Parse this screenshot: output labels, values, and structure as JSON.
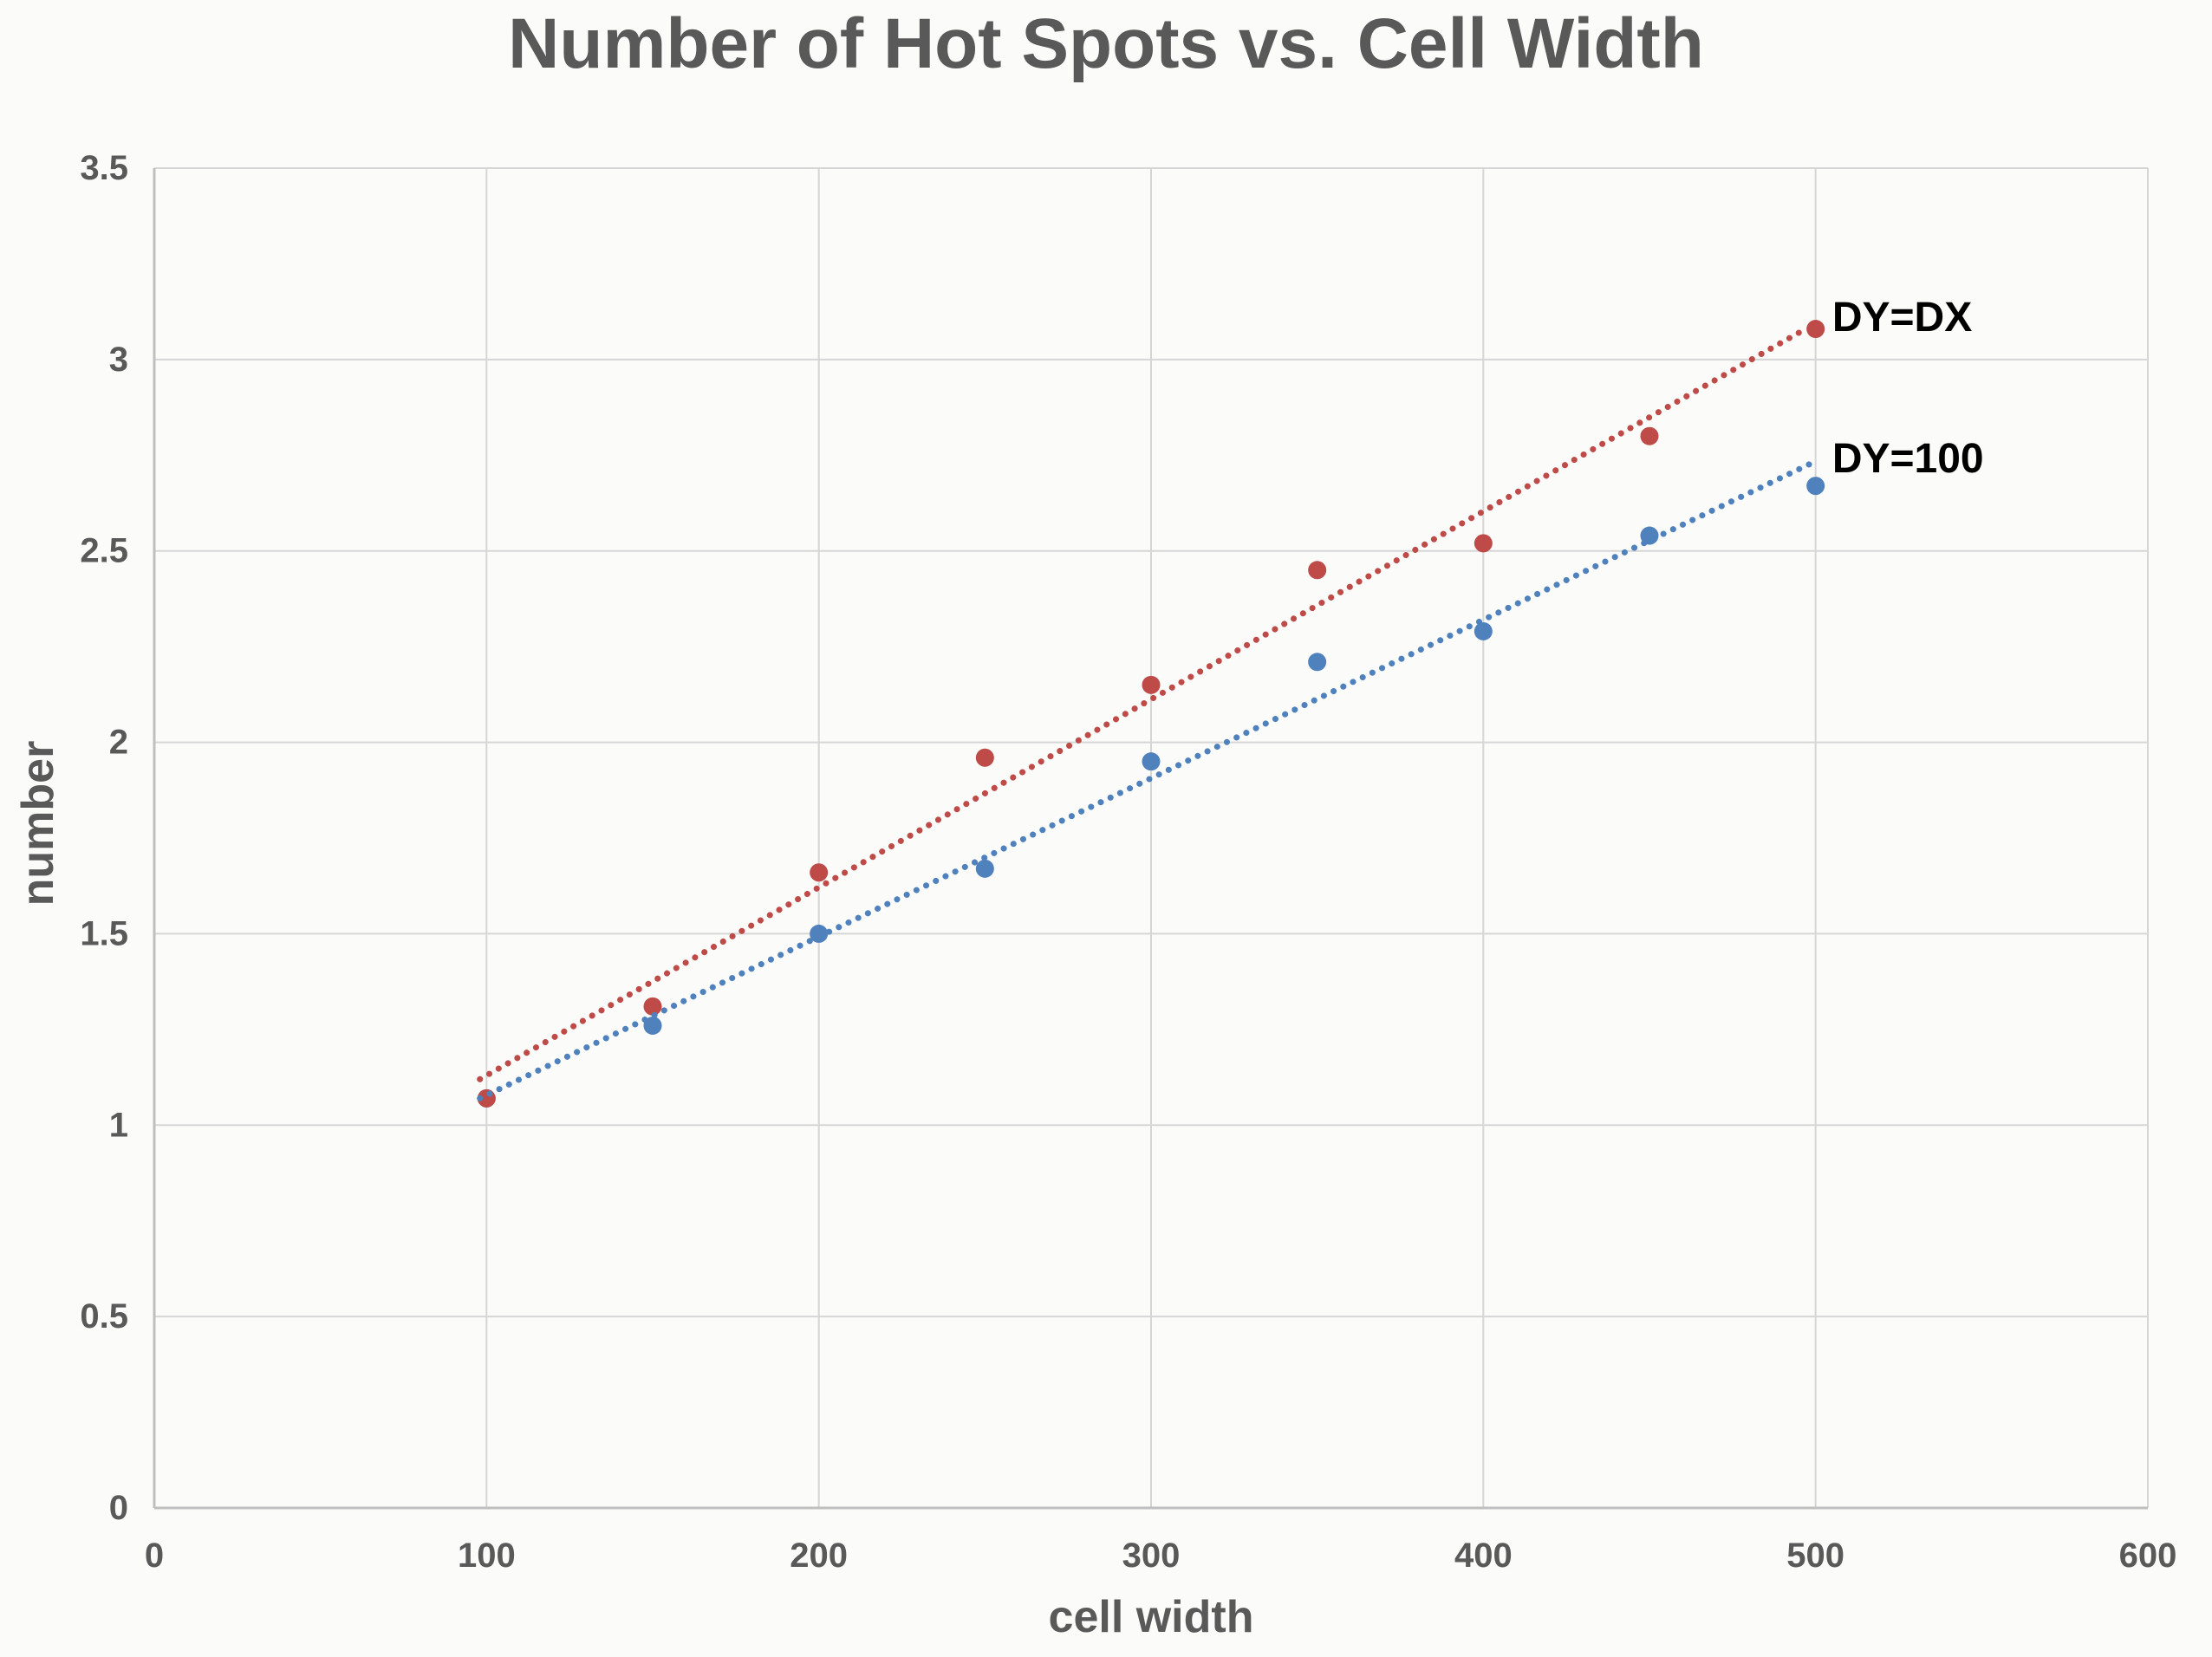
{
  "title": "Number of Hot Spots vs. Cell Width",
  "chart_data": {
    "type": "scatter",
    "title": "Number of Hot Spots vs. Cell Width",
    "xlabel": "cell width",
    "ylabel": "number",
    "xlim": [
      0,
      600
    ],
    "ylim": [
      0,
      3.5
    ],
    "grid": true,
    "x_ticks": {
      "values": [
        0,
        100,
        200,
        300,
        400,
        500,
        600
      ],
      "labels": [
        "0",
        "100",
        "200",
        "300",
        "400",
        "500",
        "600"
      ]
    },
    "y_ticks": {
      "values": [
        0,
        0.5,
        1,
        1.5,
        2,
        2.5,
        3,
        3.5
      ],
      "labels": [
        "0",
        "0.5",
        "1",
        "1.5",
        "2",
        "2.5",
        "3",
        "3.5"
      ]
    },
    "x": [
      100,
      150,
      200,
      250,
      300,
      350,
      400,
      450,
      500
    ],
    "series": [
      {
        "name": "DY=100",
        "color": "#4F81BD",
        "values": [
          1.07,
          1.26,
          1.5,
          1.67,
          1.95,
          2.21,
          2.29,
          2.54,
          2.67
        ],
        "trendline": {
          "style": "dotted",
          "x_start": 98,
          "y_start": 1.07,
          "x_end": 499,
          "y_end": 2.73
        },
        "label": {
          "text": "DY=100",
          "x": 505,
          "y": 2.74
        }
      },
      {
        "name": "DY=DX",
        "color": "#BE4B48",
        "values": [
          1.07,
          1.31,
          1.66,
          1.96,
          2.15,
          2.45,
          2.52,
          2.8,
          3.08
        ],
        "trendline": {
          "style": "dotted",
          "x_start": 98,
          "y_start": 1.12,
          "x_end": 497,
          "y_end": 3.08
        },
        "label": {
          "text": "DY=DX",
          "x": 505,
          "y": 3.11
        }
      }
    ],
    "colors": {
      "text": "#595959",
      "annotation": "#000000",
      "gridline": "#D6D6D6",
      "axis_line": "#BFBFBF",
      "background": "#FBFBFA"
    }
  }
}
